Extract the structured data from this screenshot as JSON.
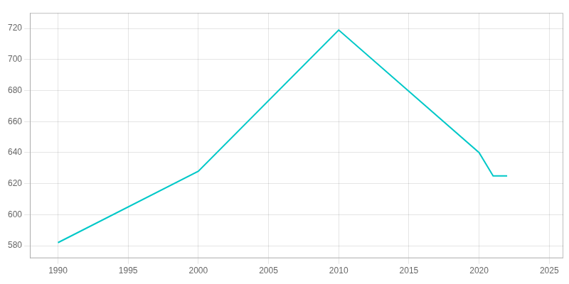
{
  "chart_data": {
    "type": "line",
    "x": [
      1990,
      2000,
      2010,
      2020,
      2021,
      2022
    ],
    "values": [
      582,
      628,
      719,
      640,
      625,
      625
    ],
    "color": "#00C8C8",
    "xlim": [
      1988,
      2026
    ],
    "ylim": [
      572,
      730
    ],
    "xticks": [
      1990,
      1995,
      2000,
      2005,
      2010,
      2015,
      2020,
      2025
    ],
    "yticks": [
      580,
      600,
      620,
      640,
      660,
      680,
      700,
      720
    ],
    "grid": true
  }
}
